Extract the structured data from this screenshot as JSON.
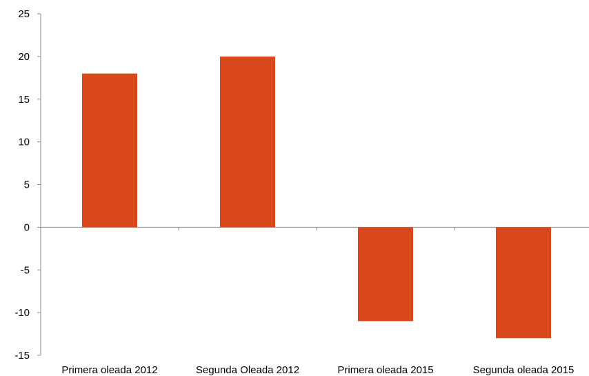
{
  "chart_data": {
    "type": "bar",
    "title": "",
    "xlabel": "",
    "ylabel": "",
    "categories": [
      "Primera oleada 2012",
      "Segunda Oleada 2012",
      "Primera oleada 2015",
      "Segunda oleada 2015"
    ],
    "values": [
      18,
      20,
      -11,
      -13
    ],
    "ylim": [
      -15,
      25
    ],
    "yticks": [
      25,
      20,
      15,
      10,
      5,
      0,
      -5,
      -10,
      -15
    ],
    "grid": false,
    "legend": "none",
    "bar_color": "#D9471C",
    "axis_color": "#8C8C8C"
  }
}
